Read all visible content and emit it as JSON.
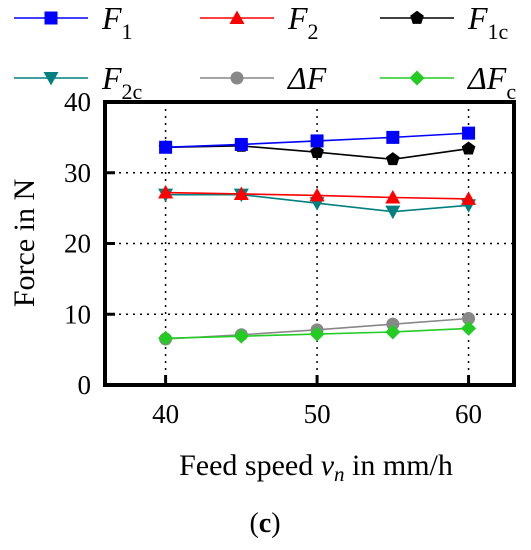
{
  "chart_data": {
    "type": "line",
    "x": [
      40,
      45,
      50,
      55,
      60
    ],
    "xticks": [
      40,
      50,
      60
    ],
    "yticks": [
      0,
      10,
      20,
      30,
      40
    ],
    "xlim": [
      36,
      63
    ],
    "ylim": [
      0,
      40
    ],
    "grid": "dotted",
    "xlabel": "Feed speed v_n in mm/h",
    "xlabel_main": "Feed speed ",
    "xlabel_var": "v",
    "xlabel_sub": "n",
    "xlabel_unit": " in mm/h",
    "ylabel": "Force in N",
    "legend_position": "top",
    "caption_open": "(",
    "caption_letter": "c",
    "caption_close": ")",
    "series": [
      {
        "name": "F1",
        "label_main": "F",
        "label_sub": "1",
        "color": "#0000ff",
        "marker": "square",
        "values": [
          33.6,
          34.0,
          34.5,
          35.0,
          35.6
        ]
      },
      {
        "name": "F2",
        "label_main": "F",
        "label_sub": "2",
        "color": "#ff0000",
        "marker": "triangle-up",
        "values": [
          27.2,
          27.0,
          26.8,
          26.5,
          26.3
        ]
      },
      {
        "name": "F1c",
        "label_main": "F",
        "label_sub": "1c",
        "color": "#000000",
        "marker": "pentagon",
        "values": [
          33.6,
          33.8,
          32.9,
          31.9,
          33.4
        ]
      },
      {
        "name": "F2c",
        "label_main": "F",
        "label_sub": "2c",
        "color": "#008080",
        "marker": "triangle-down",
        "values": [
          26.9,
          26.9,
          25.7,
          24.5,
          25.4
        ]
      },
      {
        "name": "ΔF",
        "label_main": "ΔF",
        "label_sub": "",
        "color": "#888888",
        "marker": "circle",
        "values": [
          6.5,
          7.1,
          7.8,
          8.6,
          9.4
        ]
      },
      {
        "name": "ΔFc",
        "label_main": "ΔF",
        "label_sub": "c",
        "color": "#22cc22",
        "marker": "diamond",
        "values": [
          6.6,
          6.9,
          7.2,
          7.5,
          8.0
        ]
      }
    ]
  }
}
